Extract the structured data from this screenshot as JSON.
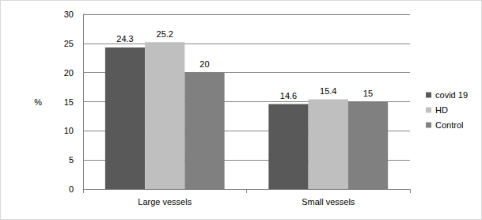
{
  "chart_data": {
    "type": "bar",
    "ylabel": "%",
    "categories": [
      "Large vessels",
      "Small vessels"
    ],
    "series": [
      {
        "name": "covid 19",
        "color": "#595959",
        "values": [
          24.3,
          14.6
        ]
      },
      {
        "name": "HD",
        "color": "#bfbfbf",
        "values": [
          25.2,
          15.4
        ]
      },
      {
        "name": "Control",
        "color": "#808080",
        "values": [
          20,
          15
        ]
      }
    ],
    "ylim": [
      0,
      30
    ],
    "yticks": [
      0,
      5,
      10,
      15,
      20,
      25,
      30
    ],
    "grid": true,
    "legend": "right",
    "data_labels": true
  }
}
